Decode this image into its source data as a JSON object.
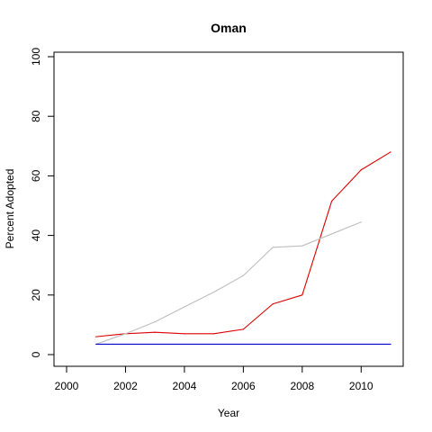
{
  "chart_data": {
    "type": "line",
    "title": "Oman",
    "xlabel": "Year",
    "ylabel": "Percent Adopted",
    "xlim": [
      2000,
      2011
    ],
    "ylim": [
      0,
      100
    ],
    "xticks": [
      2000,
      2002,
      2004,
      2006,
      2008,
      2010
    ],
    "yticks": [
      0,
      20,
      40,
      60,
      80,
      100
    ],
    "grid": false,
    "legend": "none",
    "series": [
      {
        "color": "#dd0000",
        "x": [
          2001,
          2002,
          2003,
          2004,
          2005,
          2006,
          2007,
          2008,
          2009,
          2010,
          2011
        ],
        "y": [
          6,
          7,
          7.5,
          7,
          7,
          8.5,
          17,
          20,
          51.5,
          62,
          68
        ]
      },
      {
        "color": "#bebebe",
        "x": [
          2001,
          2002,
          2003,
          2004,
          2005,
          2006,
          2007,
          2008,
          2009,
          2010
        ],
        "y": [
          3.5,
          7,
          11,
          16,
          21,
          26.5,
          36,
          36.5,
          40.5,
          44.5
        ]
      },
      {
        "color": "#0000cc",
        "x": [
          2001,
          2002,
          2003,
          2004,
          2005,
          2006,
          2007,
          2008,
          2009,
          2010,
          2011
        ],
        "y": [
          3.5,
          3.5,
          3.5,
          3.5,
          3.5,
          3.5,
          3.5,
          3.5,
          3.5,
          3.5,
          3.5
        ]
      }
    ]
  }
}
